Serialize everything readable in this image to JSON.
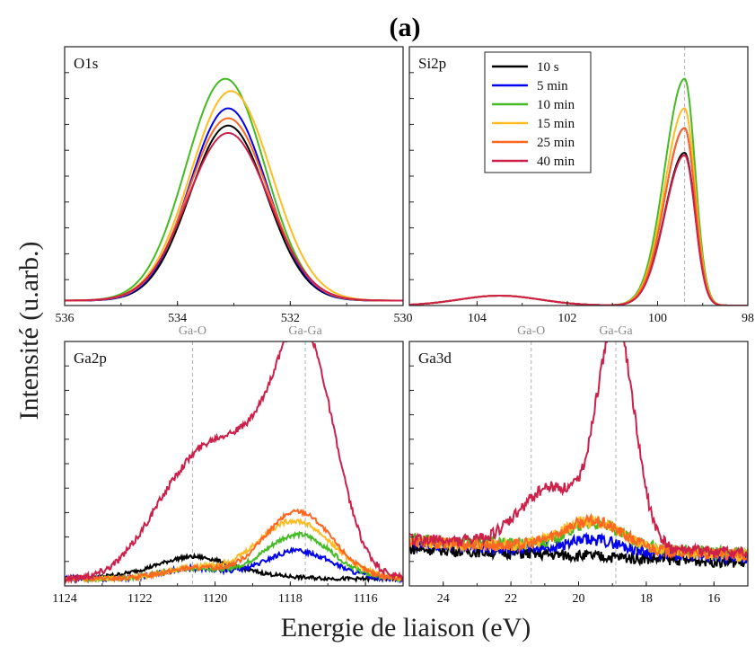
{
  "figure": {
    "title": "(a)",
    "xlabel": "Energie de liaison (eV)",
    "ylabel": "Intensité (u.arb.)"
  },
  "colors": {
    "10 s": "#000000",
    "5 min": "#0000ee",
    "10 min": "#44bb22",
    "15 min": "#ffbb22",
    "25 min": "#ff6622",
    "40 min": "#cc1f4a"
  },
  "legend": {
    "entries": [
      "10 s",
      "5 min",
      "10 min",
      "15 min",
      "25 min",
      "40 min"
    ],
    "location": "top-right of Si2p panel"
  },
  "chart_data": [
    {
      "type": "line",
      "panel_label": "O1s",
      "xlim": [
        536,
        530
      ],
      "xticks": [
        536,
        534,
        532,
        530
      ],
      "ylim": [
        0,
        1.05
      ],
      "reference_lines": [],
      "series": [
        {
          "name": "10 s",
          "peak": 533.1,
          "height": 0.71,
          "sigma": 0.68,
          "base": 0.02,
          "noise": 0
        },
        {
          "name": "5 min",
          "peak": 533.1,
          "height": 0.78,
          "sigma": 0.68,
          "base": 0.02,
          "noise": 0
        },
        {
          "name": "10 min",
          "peak": 533.15,
          "height": 0.9,
          "sigma": 0.7,
          "base": 0.02,
          "noise": 0
        },
        {
          "name": "15 min",
          "peak": 533.05,
          "height": 0.85,
          "sigma": 0.72,
          "base": 0.02,
          "noise": 0
        },
        {
          "name": "25 min",
          "peak": 533.1,
          "height": 0.74,
          "sigma": 0.7,
          "base": 0.02,
          "noise": 0
        },
        {
          "name": "40 min",
          "peak": 533.1,
          "height": 0.68,
          "sigma": 0.72,
          "base": 0.02,
          "noise": 0
        }
      ]
    },
    {
      "type": "line",
      "panel_label": "Si2p",
      "xlim": [
        105.5,
        98
      ],
      "xticks": [
        104,
        102,
        100,
        98
      ],
      "ylim": [
        0,
        1.05
      ],
      "reference_lines": [
        {
          "x": 99.4,
          "label": ""
        }
      ],
      "series": [
        {
          "name": "10 s",
          "peak": 99.4,
          "height": 0.62,
          "sigma": 0.42,
          "base": 0.0,
          "noise": 0
        },
        {
          "name": "5 min",
          "peak": 99.4,
          "height": 0.72,
          "sigma": 0.42,
          "base": 0.0,
          "noise": 0
        },
        {
          "name": "10 min",
          "peak": 99.4,
          "height": 0.92,
          "sigma": 0.42,
          "base": 0.0,
          "noise": 0
        },
        {
          "name": "15 min",
          "peak": 99.4,
          "height": 0.8,
          "sigma": 0.42,
          "base": 0.0,
          "noise": 0
        },
        {
          "name": "25 min",
          "peak": 99.4,
          "height": 0.72,
          "sigma": 0.42,
          "base": 0.0,
          "noise": 0
        },
        {
          "name": "40 min",
          "peak": 99.4,
          "height": 0.61,
          "sigma": 0.42,
          "base": 0.0,
          "noise": 0
        }
      ]
    },
    {
      "type": "line",
      "panel_label": "Ga2p",
      "xlim": [
        1124,
        1115
      ],
      "xticks": [
        1124,
        1122,
        1120,
        1118,
        1116
      ],
      "ylim": [
        0,
        1.05
      ],
      "reference_lines": [
        {
          "x": 1120.6,
          "label": "Ga-O"
        },
        {
          "x": 1117.6,
          "label": "Ga-Ga"
        }
      ],
      "series": [
        {
          "name": "10 s",
          "peak": 1120.5,
          "height": 0.05,
          "sigma": 1.4,
          "base": 0.03,
          "noise": 0.008
        },
        {
          "name": "5 min",
          "peak": 1117.8,
          "height": 0.12,
          "sigma": 0.9,
          "base": 0.03,
          "noise": 0.01
        },
        {
          "name": "10 min",
          "peak": 1117.8,
          "height": 0.19,
          "sigma": 0.9,
          "base": 0.03,
          "noise": 0.01
        },
        {
          "name": "15 min",
          "peak": 1117.9,
          "height": 0.25,
          "sigma": 1.0,
          "base": 0.03,
          "noise": 0.01
        },
        {
          "name": "25 min",
          "peak": 1117.8,
          "height": 0.29,
          "sigma": 0.9,
          "base": 0.03,
          "noise": 0.01
        },
        {
          "name": "40 min",
          "peak": 1117.6,
          "height": 0.95,
          "sigma": 0.8,
          "base": 0.03,
          "noise": 0.015
        }
      ]
    },
    {
      "type": "line",
      "panel_label": "Ga3d",
      "xlim": [
        25,
        15
      ],
      "xticks": [
        24,
        22,
        20,
        18,
        16
      ],
      "ylim": [
        0,
        1.05
      ],
      "reference_lines": [
        {
          "x": 21.4,
          "label": "Ga-O"
        },
        {
          "x": 18.9,
          "label": "Ga-Ga"
        }
      ],
      "series": [
        {
          "name": "10 s",
          "peak": 19.5,
          "height": 0.0,
          "sigma": 0.8,
          "base": 0.1,
          "noise": 0.025
        },
        {
          "name": "5 min",
          "peak": 19.5,
          "height": 0.05,
          "sigma": 0.8,
          "base": 0.12,
          "noise": 0.025
        },
        {
          "name": "10 min",
          "peak": 19.5,
          "height": 0.1,
          "sigma": 0.8,
          "base": 0.14,
          "noise": 0.025
        },
        {
          "name": "15 min",
          "peak": 19.6,
          "height": 0.12,
          "sigma": 0.9,
          "base": 0.13,
          "noise": 0.025
        },
        {
          "name": "25 min",
          "peak": 19.6,
          "height": 0.12,
          "sigma": 0.9,
          "base": 0.13,
          "noise": 0.025
        },
        {
          "name": "40 min",
          "peak": 18.9,
          "height": 0.95,
          "sigma": 0.55,
          "base": 0.14,
          "noise": 0.025
        }
      ]
    }
  ]
}
